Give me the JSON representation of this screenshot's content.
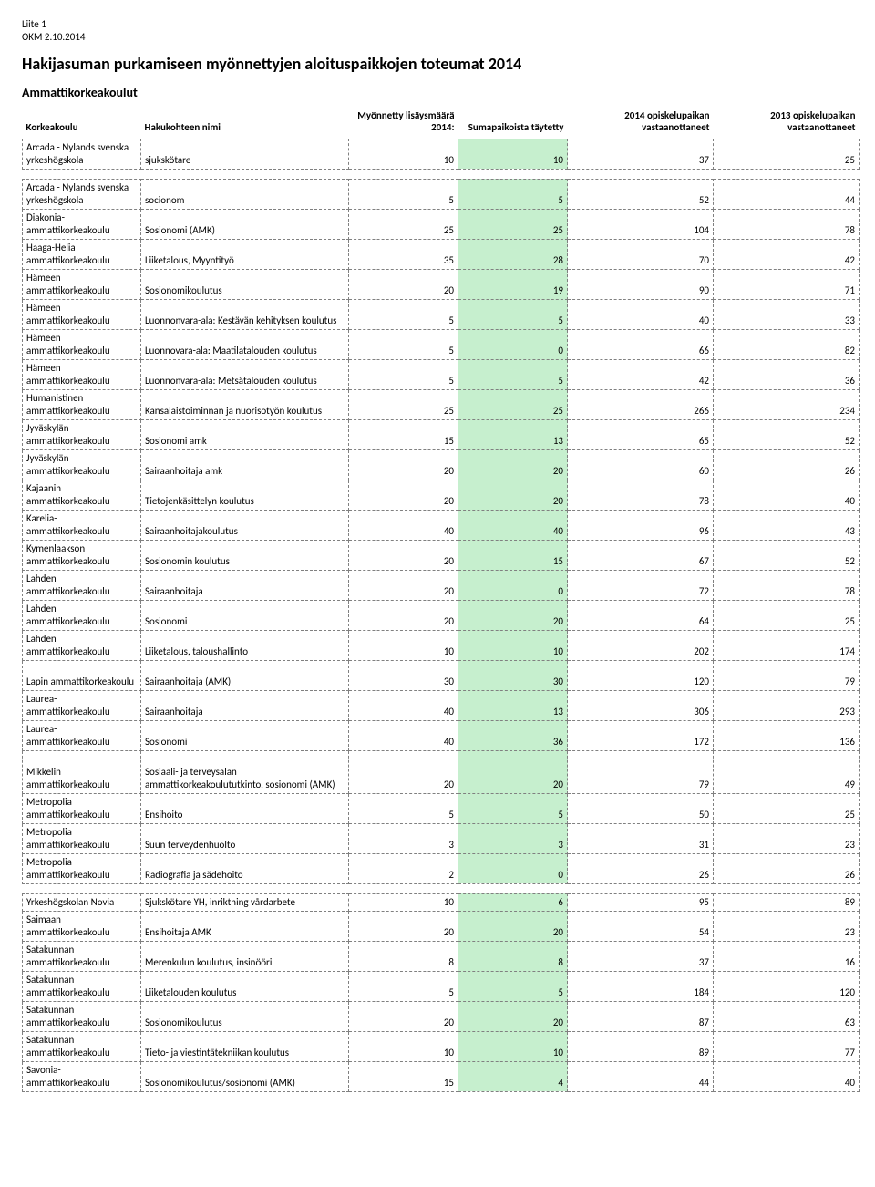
{
  "header": {
    "line1": "Liite 1",
    "line2": "OKM 2.10.2014"
  },
  "title": "Hakijasuman purkamiseen myönnettyjen aloituspaikkojen toteumat 2014",
  "subtitle": "Ammattikorkeakoulut",
  "columns": {
    "c1": "Korkeakoulu",
    "c2": "Hakukohteen nimi",
    "c3": "Myönnetty lisäysmäärä 2014:",
    "c4": "Sumapaikoista täytetty",
    "c5": "2014 opiskelupaikan vastaanottaneet",
    "c6": "2013 opiskelupaikan vastaanottaneet"
  },
  "colors": {
    "highlight": "#c6efce",
    "border": "#808080",
    "text": "#000000",
    "background": "#ffffff"
  },
  "rows": [
    {
      "tall": true,
      "c1": "Arcada - Nylands svenska yrkeshögskola",
      "c2": "sjukskötare",
      "c3": 10,
      "c4": 10,
      "c5": 37,
      "c6": 25
    },
    {
      "spacer": true
    },
    {
      "tall": true,
      "c1": "Arcada - Nylands svenska yrkeshögskola",
      "c2": "socionom",
      "c3": 5,
      "c4": 5,
      "c5": 52,
      "c6": 44
    },
    {
      "tall": true,
      "c1": "Diakonia-ammattikorkeakoulu",
      "c2": "Sosionomi (AMK)",
      "c3": 25,
      "c4": 25,
      "c5": 104,
      "c6": 78
    },
    {
      "tall": true,
      "c1": "Haaga-Helia ammattikorkeakoulu",
      "c2": "Liiketalous, Myyntityö",
      "c3": 35,
      "c4": 28,
      "c5": 70,
      "c6": 42
    },
    {
      "tall": true,
      "c1": "Hämeen ammattikorkeakoulu",
      "c2": "Sosionomikoulutus",
      "c3": 20,
      "c4": 19,
      "c5": 90,
      "c6": 71
    },
    {
      "tall": true,
      "c1": "Hämeen ammattikorkeakoulu",
      "c2": "Luonnonvara-ala: Kestävän kehityksen koulutus",
      "c3": 5,
      "c4": 5,
      "c5": 40,
      "c6": 33
    },
    {
      "tall": true,
      "c1": "Hämeen ammattikorkeakoulu",
      "c2": "Luonnovara-ala: Maatilatalouden koulutus",
      "c3": 5,
      "c4": 0,
      "c5": 66,
      "c6": 82
    },
    {
      "tall": true,
      "c1": "Hämeen ammattikorkeakoulu",
      "c2": "Luonnonvara-ala: Metsätalouden koulutus",
      "c3": 5,
      "c4": 5,
      "c5": 42,
      "c6": 36
    },
    {
      "tall": true,
      "c1": "Humanistinen ammattikorkeakoulu",
      "c2": "Kansalaistoiminnan ja nuorisotyön koulutus",
      "c3": 25,
      "c4": 25,
      "c5": 266,
      "c6": 234
    },
    {
      "tall": true,
      "c1": "Jyväskylän ammattikorkeakoulu",
      "c2": "Sosionomi amk",
      "c3": 15,
      "c4": 13,
      "c5": 65,
      "c6": 52
    },
    {
      "tall": true,
      "c1": "Jyväskylän ammattikorkeakoulu",
      "c2": "Sairaanhoitaja amk",
      "c3": 20,
      "c4": 20,
      "c5": 60,
      "c6": 26
    },
    {
      "tall": true,
      "c1": "Kajaanin ammattikorkeakoulu",
      "c2": "Tietojenkäsittelyn koulutus",
      "c3": 20,
      "c4": 20,
      "c5": 78,
      "c6": 40
    },
    {
      "tall": true,
      "c1": "Karelia-ammattikorkeakoulu",
      "c2": "Sairaanhoitajakoulutus",
      "c3": 40,
      "c4": 40,
      "c5": 96,
      "c6": 43
    },
    {
      "tall": true,
      "c1": "Kymenlaakson ammattikorkeakoulu",
      "c2": "Sosionomin koulutus",
      "c3": 20,
      "c4": 15,
      "c5": 67,
      "c6": 52
    },
    {
      "tall": true,
      "c1": "Lahden ammattikorkeakoulu",
      "c2": "Sairaanhoitaja",
      "c3": 20,
      "c4": 0,
      "c5": 72,
      "c6": 78
    },
    {
      "tall": true,
      "c1": "Lahden ammattikorkeakoulu",
      "c2": "Sosionomi",
      "c3": 20,
      "c4": 20,
      "c5": 64,
      "c6": 25
    },
    {
      "tall": true,
      "c1": "Lahden ammattikorkeakoulu",
      "c2": "Liiketalous, taloushallinto",
      "c3": 10,
      "c4": 10,
      "c5": 202,
      "c6": 174
    },
    {
      "tall": true,
      "c1": "Lapin ammattikorkeakoulu",
      "c2": "Sairaanhoitaja (AMK)",
      "c3": 30,
      "c4": 30,
      "c5": 120,
      "c6": 79
    },
    {
      "tall": true,
      "c1": "Laurea-ammattikorkeakoulu",
      "c2": "Sairaanhoitaja",
      "c3": 40,
      "c4": 13,
      "c5": 306,
      "c6": 293
    },
    {
      "tall": true,
      "c1": "Laurea-ammattikorkeakoulu",
      "c2": "Sosionomi",
      "c3": 40,
      "c4": 36,
      "c5": 172,
      "c6": 136
    },
    {
      "tall3": true,
      "c1": "Mikkelin ammattikorkeakoulu",
      "c2": "Sosiaali- ja terveysalan ammattikorkeakoulututkinto, sosionomi (AMK)",
      "c3": 20,
      "c4": 20,
      "c5": 79,
      "c6": 49
    },
    {
      "tall": true,
      "c1": "Metropolia ammattikorkeakoulu",
      "c2": "Ensihoito",
      "c3": 5,
      "c4": 5,
      "c5": 50,
      "c6": 25
    },
    {
      "tall": true,
      "c1": "Metropolia ammattikorkeakoulu",
      "c2": "Suun terveydenhuolto",
      "c3": 3,
      "c4": 3,
      "c5": 31,
      "c6": 23
    },
    {
      "tall": true,
      "c1": "Metropolia ammattikorkeakoulu",
      "c2": "Radiografia ja sädehoito",
      "c3": 2,
      "c4": 0,
      "c5": 26,
      "c6": 26
    },
    {
      "spacer": true
    },
    {
      "c1": "Yrkeshögskolan Novia",
      "c2": "Sjukskötare YH, inriktning vårdarbete",
      "c3": 10,
      "c4": 6,
      "c5": 95,
      "c6": 89
    },
    {
      "tall": true,
      "c1": "Saimaan ammattikorkeakoulu",
      "c2": "Ensihoitaja AMK",
      "c3": 20,
      "c4": 20,
      "c5": 54,
      "c6": 23
    },
    {
      "tall": true,
      "c1": "Satakunnan ammattikorkeakoulu",
      "c2": "Merenkulun koulutus, insinööri",
      "c3": 8,
      "c4": 8,
      "c5": 37,
      "c6": 16
    },
    {
      "tall": true,
      "c1": "Satakunnan ammattikorkeakoulu",
      "c2": "Liiketalouden koulutus",
      "c3": 5,
      "c4": 5,
      "c5": 184,
      "c6": 120
    },
    {
      "tall": true,
      "c1": "Satakunnan ammattikorkeakoulu",
      "c2": "Sosionomikoulutus",
      "c3": 20,
      "c4": 20,
      "c5": 87,
      "c6": 63
    },
    {
      "tall": true,
      "c1": "Satakunnan ammattikorkeakoulu",
      "c2": "Tieto- ja viestintätekniikan koulutus",
      "c3": 10,
      "c4": 10,
      "c5": 89,
      "c6": 77
    },
    {
      "tall": true,
      "c1": "Savonia-ammattikorkeakoulu",
      "c2": "Sosionomikoulutus/sosionomi (AMK)",
      "c3": 15,
      "c4": 4,
      "c5": 44,
      "c6": 40
    }
  ]
}
